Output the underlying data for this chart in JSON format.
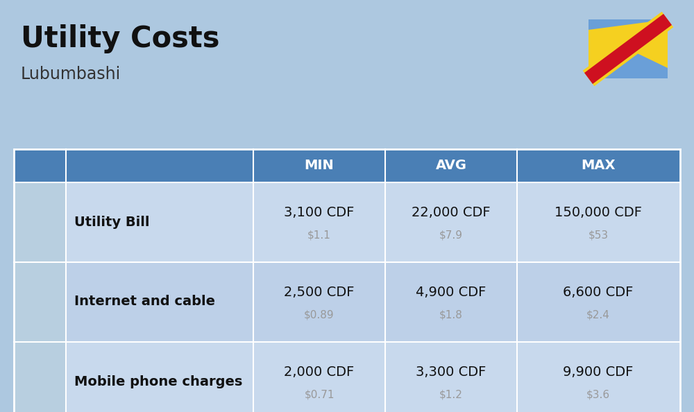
{
  "title": "Utility Costs",
  "subtitle": "Lubumbashi",
  "background_color": "#adc8e0",
  "header_color": "#4a7fb5",
  "header_text_color": "#ffffff",
  "row_colors": [
    "#c8d9ed",
    "#bdd0e8"
  ],
  "icon_col_color": "#b8cfe0",
  "columns": [
    "MIN",
    "AVG",
    "MAX"
  ],
  "rows": [
    {
      "label": "Utility Bill",
      "min_cdf": "3,100 CDF",
      "min_usd": "$1.1",
      "avg_cdf": "22,000 CDF",
      "avg_usd": "$7.9",
      "max_cdf": "150,000 CDF",
      "max_usd": "$53"
    },
    {
      "label": "Internet and cable",
      "min_cdf": "2,500 CDF",
      "min_usd": "$0.89",
      "avg_cdf": "4,900 CDF",
      "avg_usd": "$1.8",
      "max_cdf": "6,600 CDF",
      "max_usd": "$2.4"
    },
    {
      "label": "Mobile phone charges",
      "min_cdf": "2,000 CDF",
      "min_usd": "$0.71",
      "avg_cdf": "3,300 CDF",
      "avg_usd": "$1.2",
      "max_cdf": "9,900 CDF",
      "max_usd": "$3.6"
    }
  ],
  "flag_blue": "#6a9fd8",
  "flag_red": "#ce1020",
  "flag_yellow": "#f5d020",
  "usd_color": "#999999",
  "label_color": "#111111",
  "cdf_color": "#111111",
  "fig_width": 10.0,
  "fig_height": 5.94,
  "dpi": 100
}
